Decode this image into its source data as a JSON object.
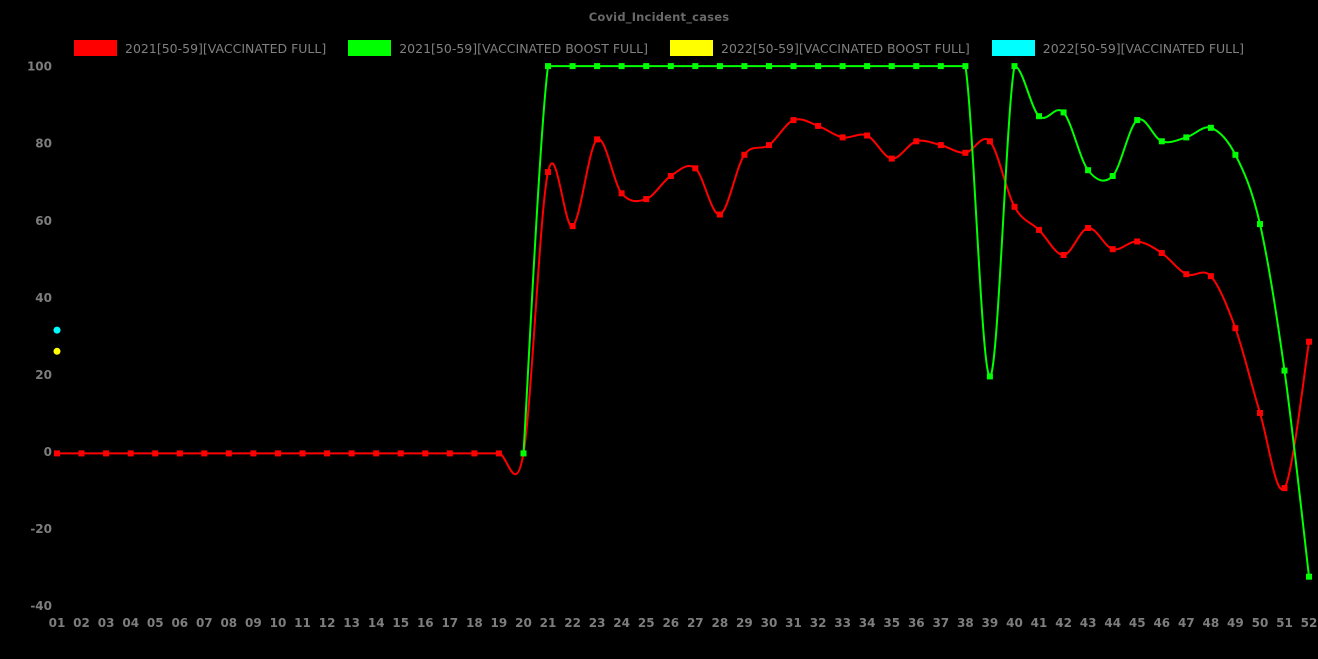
{
  "chart_data": {
    "type": "line",
    "title": "Covid_Incident_cases",
    "background": "#000000",
    "text_color": "#808080",
    "grid": false,
    "legend_position": "top",
    "smooth": true,
    "xlabel": "",
    "ylabel": "",
    "ylim": [
      -40,
      100
    ],
    "yticks": [
      100,
      80,
      60,
      40,
      20,
      0,
      -20,
      -40
    ],
    "xticklabels": [
      "01",
      "02",
      "03",
      "04",
      "05",
      "06",
      "07",
      "08",
      "09",
      "10",
      "11",
      "12",
      "13",
      "14",
      "15",
      "16",
      "17",
      "18",
      "19",
      "20",
      "21",
      "22",
      "23",
      "24",
      "25",
      "26",
      "27",
      "28",
      "29",
      "30",
      "31",
      "32",
      "33",
      "34",
      "35",
      "36",
      "37",
      "38",
      "39",
      "40",
      "41",
      "42",
      "43",
      "44",
      "45",
      "46",
      "47",
      "48",
      "49",
      "50",
      "51",
      "52"
    ],
    "series": [
      {
        "name": "2021[50-59][VACCINATED FULL]",
        "color": "#ff0000",
        "marker": "square",
        "start_week": 1,
        "values": [
          -0.5,
          -0.5,
          -0.5,
          -0.5,
          -0.5,
          -0.5,
          -0.5,
          -0.5,
          -0.5,
          -0.5,
          -0.5,
          -0.5,
          -0.5,
          -0.5,
          -0.5,
          -0.5,
          -0.5,
          -0.5,
          -0.5,
          -0.5,
          72.5,
          58.5,
          81,
          67,
          65.5,
          71.5,
          73.5,
          61.5,
          77,
          79.5,
          86,
          84.5,
          81.5,
          82,
          76,
          80.5,
          79.5,
          77.5,
          80.5,
          63.5,
          57.5,
          51,
          58,
          52.5,
          54.5,
          51.5,
          46,
          45.5,
          32,
          10,
          -9.5,
          28.5
        ]
      },
      {
        "name": "2021[50-59][VACCINATED BOOST FULL]",
        "color": "#00ff00",
        "marker": "square",
        "start_week": 20,
        "values": [
          -0.5,
          100,
          100,
          100,
          100,
          100,
          100,
          100,
          100,
          100,
          100,
          100,
          100,
          100,
          100,
          100,
          100,
          100,
          100,
          19.5,
          100,
          87,
          88,
          73,
          71.5,
          86,
          80.5,
          81.5,
          84,
          77,
          59,
          21,
          -32.5
        ]
      },
      {
        "name": "2022[50-59][VACCINATED BOOST FULL]",
        "color": "#ffff00",
        "marker": "dot",
        "start_week": 1,
        "values": [
          26
        ]
      },
      {
        "name": "2022[50-59][VACCINATED FULL]",
        "color": "#00ffff",
        "marker": "dot",
        "start_week": 1,
        "values": [
          31.5
        ]
      }
    ]
  }
}
